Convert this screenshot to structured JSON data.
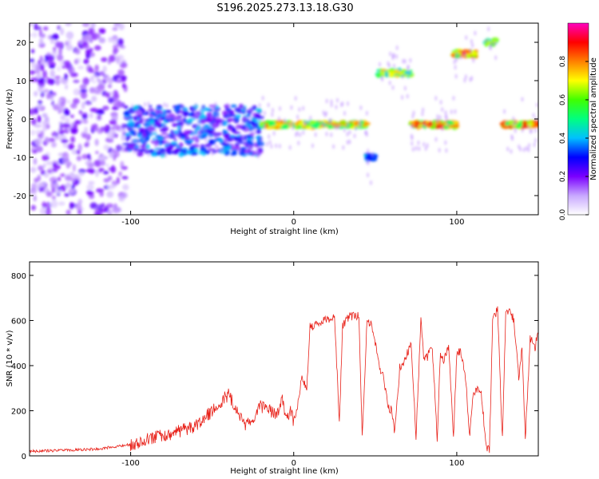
{
  "title": "S196.2025.273.13.18.G30",
  "chart_data": [
    {
      "type": "heatmap",
      "panel": "top",
      "xlabel": "Height of straight line (km)",
      "ylabel": "Frequency (Hz)",
      "xlim": [
        -162,
        150
      ],
      "ylim": [
        -25,
        25
      ],
      "xticks": [
        -100,
        0,
        100
      ],
      "yticks": [
        -20,
        -10,
        0,
        10,
        20
      ],
      "colorbar": {
        "label": "Normalized spectral amplitude",
        "range": [
          0,
          1
        ],
        "ticks": [
          0.0,
          0.2,
          0.4,
          0.6,
          0.8
        ],
        "colormap": [
          "#ffffff",
          "#c8a8ff",
          "#7a00ff",
          "#0000ff",
          "#00c0ff",
          "#00ff80",
          "#40ff00",
          "#ffff00",
          "#ff8000",
          "#ff0000",
          "#ff00c0"
        ]
      },
      "features": [
        {
          "desc": "broadband noise",
          "x_range": [
            -162,
            -103
          ],
          "f_range": [
            -25,
            25
          ],
          "amp": 0.12
        },
        {
          "desc": "scattered energy",
          "x_range": [
            -103,
            -20
          ],
          "f_center": -3,
          "f_spread": 8,
          "amp": 0.3
        },
        {
          "desc": "main line",
          "x_range": [
            -20,
            45
          ],
          "f_center": -1.5,
          "amp": 0.75
        },
        {
          "desc": "drop",
          "x_range": [
            45,
            50
          ],
          "f_center": -10,
          "amp": 0.45
        },
        {
          "desc": "line",
          "x_range": [
            52,
            72
          ],
          "f_center": 12,
          "amp": 0.7
        },
        {
          "desc": "line",
          "x_range": [
            72,
            100
          ],
          "f_center": -1.5,
          "amp": 0.85
        },
        {
          "desc": "line",
          "x_range": [
            98,
            112
          ],
          "f_center": 17,
          "amp": 0.9
        },
        {
          "desc": "line",
          "x_range": [
            118,
            124
          ],
          "f_center": 20,
          "amp": 0.65
        },
        {
          "desc": "line",
          "x_range": [
            128,
            150
          ],
          "f_center": -1.5,
          "amp": 0.85
        }
      ]
    },
    {
      "type": "line",
      "panel": "bottom",
      "xlabel": "Height of straight line (km)",
      "ylabel": "SNR (10 * v/v)",
      "xlim": [
        -162,
        150
      ],
      "ylim": [
        0,
        860
      ],
      "xticks": [
        -100,
        0,
        100
      ],
      "yticks": [
        0,
        200,
        400,
        600,
        800
      ],
      "color": "#e8221a",
      "series": [
        {
          "name": "SNR",
          "x": [
            -162,
            -140,
            -120,
            -110,
            -100,
            -90,
            -80,
            -70,
            -60,
            -50,
            -45,
            -40,
            -35,
            -30,
            -25,
            -20,
            -15,
            -10,
            -7,
            -5,
            -2,
            0,
            2,
            5,
            8,
            10,
            15,
            20,
            25,
            28,
            30,
            32,
            35,
            38,
            40,
            42,
            45,
            48,
            50,
            53,
            55,
            58,
            60,
            62,
            65,
            68,
            70,
            72,
            75,
            78,
            80,
            82,
            85,
            88,
            90,
            92,
            95,
            98,
            100,
            102,
            105,
            108,
            110,
            112,
            115,
            118,
            120,
            122,
            125,
            128,
            130,
            132,
            135,
            138,
            140,
            142,
            145,
            148,
            150
          ],
          "y": [
            20,
            25,
            30,
            40,
            50,
            70,
            90,
            110,
            130,
            200,
            240,
            270,
            200,
            130,
            160,
            220,
            200,
            180,
            250,
            150,
            200,
            150,
            210,
            350,
            300,
            570,
            590,
            600,
            620,
            150,
            580,
            600,
            620,
            620,
            620,
            90,
            600,
            580,
            500,
            380,
            350,
            220,
            200,
            100,
            390,
            420,
            460,
            500,
            80,
            600,
            420,
            440,
            480,
            80,
            460,
            420,
            480,
            80,
            450,
            460,
            380,
            80,
            280,
            300,
            280,
            50,
            20,
            600,
            650,
            70,
            620,
            650,
            600,
            350,
            480,
            70,
            520,
            480,
            560
          ]
        }
      ]
    }
  ]
}
